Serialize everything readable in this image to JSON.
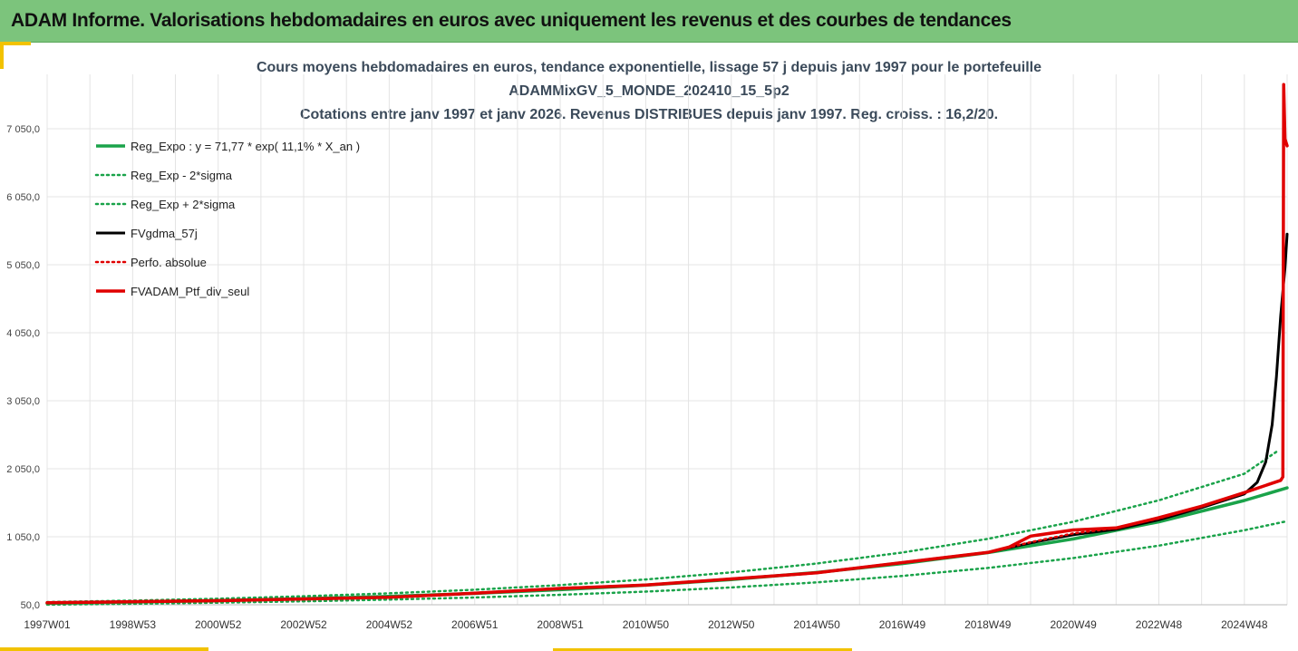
{
  "header": {
    "title": "ADAM Informe. Valorisations hebdomadaires en euros avec uniquement les revenus et des courbes de tendances"
  },
  "colors": {
    "banner": "#7cc47c",
    "trend_green": "#1aa34a",
    "black": "#000000",
    "red": "#e00000",
    "accent_yellow": "#f2c200"
  },
  "chart_data": {
    "type": "line",
    "title": [
      "Cours moyens hebdomadaires  en euros, tendance exponentielle, lissage 57 j depuis janv 1997 pour le portefeuille",
      "ADAMMixGV_5_MONDE_202410_15_5p2",
      "Cotations entre janv 1997 et janv 2026. Revenus DISTRIBUES depuis janv 1997. Reg. croiss. : 16,2/20."
    ],
    "xlabel": "",
    "ylabel": "",
    "x_tick_labels": [
      "1997W01",
      "1998W53",
      "2000W52",
      "2002W52",
      "2004W52",
      "2006W51",
      "2008W51",
      "2010W50",
      "2012W50",
      "2014W50",
      "2016W49",
      "2018W49",
      "2020W49",
      "2022W48",
      "2024W48"
    ],
    "x_tick_years": [
      1997.0,
      1999.0,
      2001.0,
      2003.0,
      2005.0,
      2007.0,
      2009.0,
      2011.0,
      2013.0,
      2015.0,
      2017.0,
      2019.0,
      2021.0,
      2023.0,
      2025.0
    ],
    "xlim": [
      1997.0,
      2026.0
    ],
    "y_ticks": [
      50,
      1050,
      2050,
      3050,
      4050,
      5050,
      6050,
      7050
    ],
    "y_tick_labels": [
      "50,0",
      "1 050,0",
      "2 050,0",
      "3 050,0",
      "4 050,0",
      "5 050,0",
      "6 050,0",
      "7 050,0"
    ],
    "ylim": [
      50,
      7850
    ],
    "grid": true,
    "legend_position": "top-left",
    "series": [
      {
        "name": "Reg_Expo : y = 71,77 * exp( 11,1% *  X_an )",
        "color": "#1aa34a",
        "style": "solid",
        "width": 3.5,
        "x": [
          1997,
          1999,
          2001,
          2003,
          2005,
          2007,
          2009,
          2011,
          2013,
          2015,
          2017,
          2019,
          2021,
          2023,
          2025,
          2026
        ],
        "y": [
          72,
          90,
          112,
          140,
          174,
          217,
          271,
          338,
          421,
          525,
          655,
          816,
          1018,
          1270,
          1583,
          1768
        ]
      },
      {
        "name": "Reg_Exp - 2*sigma",
        "color": "#1aa34a",
        "style": "dotted",
        "width": 2.5,
        "x": [
          1997,
          1999,
          2001,
          2003,
          2005,
          2007,
          2009,
          2011,
          2013,
          2015,
          2017,
          2019,
          2021,
          2023,
          2025,
          2026
        ],
        "y": [
          52,
          65,
          81,
          101,
          126,
          157,
          196,
          244,
          305,
          380,
          474,
          591,
          737,
          919,
          1146,
          1280
        ]
      },
      {
        "name": "Reg_Exp + 2*sigma",
        "color": "#1aa34a",
        "style": "dotted",
        "width": 2.5,
        "x": [
          1997,
          1999,
          2001,
          2003,
          2005,
          2007,
          2009,
          2011,
          2013,
          2015,
          2017,
          2019,
          2021,
          2023,
          2025,
          2025.75
        ],
        "y": [
          90,
          112,
          140,
          175,
          218,
          272,
          339,
          422,
          526,
          656,
          818,
          1020,
          1272,
          1586,
          1977,
          2300
        ]
      },
      {
        "name": "FVgdma_57j",
        "color": "#000000",
        "style": "solid",
        "width": 3,
        "x": [
          1997,
          1999,
          2001,
          2003,
          2005,
          2007,
          2009,
          2011,
          2013,
          2015,
          2017,
          2019,
          2020,
          2021,
          2022,
          2023,
          2024,
          2025,
          2025.3,
          2025.5,
          2025.65,
          2025.75,
          2025.85,
          2025.95,
          2026
        ],
        "y": [
          80,
          95,
          110,
          135,
          160,
          220,
          290,
          340,
          430,
          520,
          670,
          820,
          960,
          1080,
          1160,
          1300,
          1480,
          1680,
          1850,
          2150,
          2700,
          3400,
          4300,
          5000,
          5500
        ]
      },
      {
        "name": "Perfo. absolue",
        "color": "#e00000",
        "style": "dotted",
        "width": 2.5,
        "x": [
          1997,
          1999,
          2001,
          2003,
          2005,
          2007,
          2009,
          2011,
          2013,
          2015,
          2017,
          2019,
          2020,
          2021,
          2022,
          2023,
          2024,
          2025,
          2025.85,
          2025.9
        ],
        "y": [
          80,
          95,
          110,
          135,
          160,
          220,
          290,
          340,
          430,
          520,
          670,
          820,
          970,
          1100,
          1180,
          1320,
          1500,
          1700,
          1880,
          1930
        ]
      },
      {
        "name": "FVADAM_Ptf_div_seul",
        "color": "#e00000",
        "style": "solid",
        "width": 3.5,
        "x": [
          1997,
          1999,
          2001,
          2003,
          2005,
          2007,
          2009,
          2011,
          2013,
          2015,
          2017,
          2019,
          2019.5,
          2020,
          2021,
          2022,
          2023,
          2024,
          2025,
          2025.85,
          2025.9,
          2025.92,
          2025.95,
          2026
        ],
        "y": [
          80,
          95,
          110,
          135,
          160,
          220,
          290,
          340,
          430,
          520,
          670,
          820,
          900,
          1060,
          1150,
          1180,
          1330,
          1500,
          1700,
          1880,
          1930,
          7700,
          6900,
          6800
        ]
      }
    ]
  }
}
